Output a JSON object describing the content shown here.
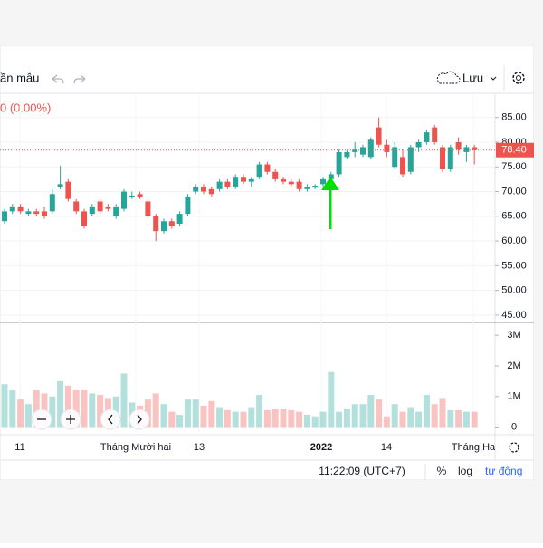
{
  "toolbar": {
    "template": "ần mẫu",
    "save": "Lưu"
  },
  "legend_change": "0 (0.00%)",
  "chart_data": {
    "type": "candlestick",
    "ohlc": [
      [
        64,
        66.5,
        63.5,
        66
      ],
      [
        66,
        67.5,
        65.5,
        67
      ],
      [
        67,
        67.5,
        65.5,
        66
      ],
      [
        65.5,
        66.5,
        65,
        66
      ],
      [
        66,
        66.5,
        65,
        65.5
      ],
      [
        66,
        67,
        64.5,
        65
      ],
      [
        66,
        70.5,
        65.5,
        69.5
      ],
      [
        71,
        75.2,
        70.5,
        71.5
      ],
      [
        72,
        72.5,
        68,
        68.5
      ],
      [
        68,
        68.5,
        65.5,
        66
      ],
      [
        66,
        66.5,
        62.5,
        63
      ],
      [
        65.5,
        67.5,
        65,
        67
      ],
      [
        68,
        68.5,
        65.5,
        66
      ],
      [
        67,
        67.5,
        66,
        66.5
      ],
      [
        65,
        67.5,
        64.5,
        67
      ],
      [
        66.5,
        70.5,
        66,
        70
      ],
      [
        69,
        70,
        68.5,
        69.2
      ],
      [
        69.5,
        70,
        68.5,
        69
      ],
      [
        68,
        68.5,
        64.5,
        65
      ],
      [
        65,
        65.5,
        60,
        62
      ],
      [
        62,
        64.5,
        61.5,
        64
      ],
      [
        64,
        64.5,
        62.5,
        63
      ],
      [
        63.5,
        66,
        63,
        65.5
      ],
      [
        65.5,
        69.5,
        65,
        69
      ],
      [
        70,
        71.5,
        69.5,
        71
      ],
      [
        71,
        71.5,
        69.5,
        70
      ],
      [
        70.5,
        71,
        69,
        69.5
      ],
      [
        70.5,
        72.5,
        70,
        72
      ],
      [
        72,
        72.5,
        70.5,
        71
      ],
      [
        71,
        73.5,
        70.5,
        73
      ],
      [
        73,
        73.5,
        71.5,
        72
      ],
      [
        72,
        73,
        71,
        72.5
      ],
      [
        73,
        76,
        72.5,
        75.5
      ],
      [
        75.5,
        76,
        73.5,
        74
      ],
      [
        74,
        74.5,
        72,
        72.5
      ],
      [
        72.5,
        73,
        71.5,
        72
      ],
      [
        72,
        72.5,
        71,
        71.5
      ],
      [
        72,
        72.5,
        70,
        70.5
      ],
      [
        70.5,
        71.5,
        70,
        71
      ],
      [
        70.8,
        71.5,
        70.5,
        71.2
      ],
      [
        71.5,
        73,
        71,
        72.5
      ],
      [
        72.5,
        74,
        71.5,
        73.5
      ],
      [
        73.5,
        78.5,
        73,
        78
      ],
      [
        77,
        78.5,
        76.5,
        78
      ],
      [
        78,
        80,
        77,
        78.5
      ],
      [
        77.5,
        79.5,
        77,
        79
      ],
      [
        77,
        81,
        76.5,
        80.5
      ],
      [
        83,
        85,
        79,
        79.5
      ],
      [
        79.5,
        80.5,
        77,
        78
      ],
      [
        75,
        80,
        74.5,
        79
      ],
      [
        77,
        78.5,
        73,
        73.5
      ],
      [
        74,
        79.5,
        73.5,
        79
      ],
      [
        79,
        80.5,
        78,
        80
      ],
      [
        80,
        82.5,
        79.5,
        82
      ],
      [
        83,
        83.5,
        79.5,
        80
      ],
      [
        79,
        79.5,
        74,
        74.5
      ],
      [
        74.5,
        79.5,
        74,
        79
      ],
      [
        80,
        81,
        77.5,
        78.5
      ],
      [
        78,
        79.5,
        76,
        79
      ],
      [
        79,
        79.5,
        75.5,
        78.4
      ]
    ],
    "volume": [
      1400000,
      1200000,
      900000,
      750000,
      1200000,
      1100000,
      1000000,
      1500000,
      1350000,
      1200000,
      1200000,
      1100000,
      1050000,
      950000,
      1000000,
      1750000,
      800000,
      700000,
      900000,
      1100000,
      750000,
      500000,
      400000,
      900000,
      900000,
      700000,
      850000,
      650000,
      550000,
      500000,
      500000,
      650000,
      1050000,
      550000,
      600000,
      600000,
      550000,
      500000,
      400000,
      350000,
      500000,
      1800000,
      500000,
      600000,
      750000,
      750000,
      1050000,
      900000,
      350000,
      750000,
      500000,
      650000,
      500000,
      1050000,
      750000,
      950000,
      550000,
      550000,
      500000,
      500000
    ],
    "ylim": [
      43.7,
      89.9
    ],
    "yticks": [
      {
        "value": 45,
        "label": "45.00"
      },
      {
        "value": 50,
        "label": "50.00"
      },
      {
        "value": 55,
        "label": "55.00"
      },
      {
        "value": 60,
        "label": "60.00"
      },
      {
        "value": 65,
        "label": "65.00"
      },
      {
        "value": 70,
        "label": "70.00"
      },
      {
        "value": 75,
        "label": "75.00"
      },
      {
        "value": 80,
        "label": "80.00"
      },
      {
        "value": 85,
        "label": "85.00"
      }
    ],
    "volume_ylim": [
      -250000,
      3390000
    ],
    "volume_ticks": [
      0,
      {
        "value": 1000000,
        "label": "1M"
      },
      {
        "value": 2000000,
        "label": "2M"
      },
      {
        "value": 3000000,
        "label": "3M"
      }
    ],
    "last_price": {
      "value": 78.4,
      "label": "78.40"
    },
    "up_color": "#26a69a",
    "down_color": "#ef5350",
    "time_labels": [
      "11",
      "Tháng Mười hai",
      "13",
      "2022",
      "14",
      "Tháng Ha"
    ]
  },
  "status": {
    "time": "11:22:09 (UTC+7)",
    "percent": "%",
    "log": "log",
    "auto": "tự động"
  }
}
